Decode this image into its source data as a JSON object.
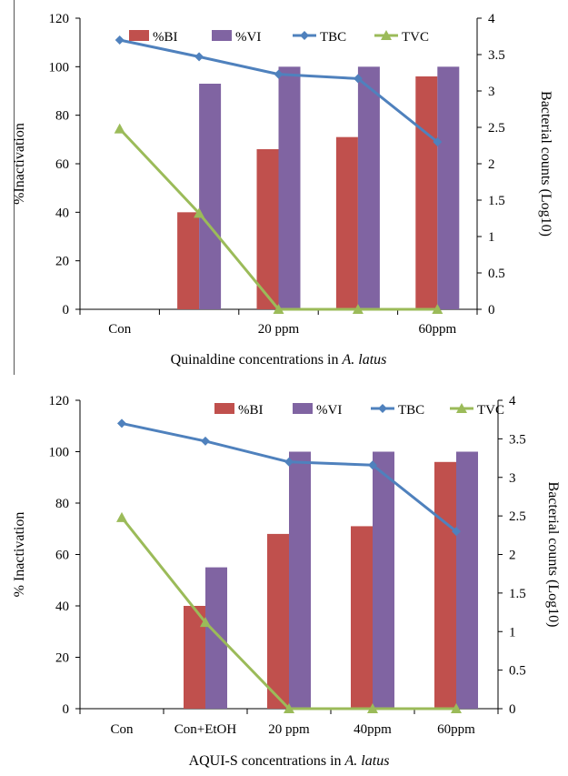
{
  "colors": {
    "bi": "#c0504d",
    "vi": "#8064a2",
    "tbc": "#4f81bd",
    "tvc": "#9bbb59",
    "axis": "#000000"
  },
  "chart_data": [
    {
      "type": "bar",
      "combo": "bar+line (secondary axis)",
      "categories": [
        "Con",
        "",
        "20 ppm",
        "",
        "60ppm"
      ],
      "xlabel_prefix": "Quinaldine concentrations in ",
      "xlabel_italic": "A. latus",
      "ylabel": "%Inactivation",
      "y2label": "Bacterial counts (Log10)",
      "ylim": [
        0,
        120
      ],
      "yticks": [
        "0",
        "20",
        "40",
        "60",
        "80",
        "100",
        "120"
      ],
      "y2lim": [
        0,
        4
      ],
      "y2ticks": [
        "0",
        "0.5",
        "1",
        "1.5",
        "2",
        "2.5",
        "3",
        "3.5",
        "4"
      ],
      "legend_position": "top",
      "series": [
        {
          "name": "%BI",
          "kind": "bar",
          "axis": "left",
          "values": [
            null,
            40,
            66,
            71,
            96
          ]
        },
        {
          "name": "%VI",
          "kind": "bar",
          "axis": "left",
          "values": [
            null,
            93,
            100,
            100,
            100
          ]
        },
        {
          "name": "TBC",
          "kind": "line",
          "marker": "diamond",
          "axis": "right",
          "values": [
            3.7,
            3.47,
            3.23,
            3.17,
            2.3
          ]
        },
        {
          "name": "TVC",
          "kind": "line",
          "marker": "triangle",
          "axis": "right",
          "values": [
            2.48,
            1.32,
            0,
            0,
            0
          ]
        }
      ]
    },
    {
      "type": "bar",
      "combo": "bar+line (secondary axis)",
      "categories": [
        "Con",
        "Con+EtOH",
        "20 ppm",
        "40ppm",
        "60ppm"
      ],
      "xlabel_prefix": "AQUI-S concentrations in ",
      "xlabel_italic": "A. latus",
      "ylabel": "% Inactivation",
      "y2label": "Bacterial counts (Log10)",
      "ylim": [
        0,
        120
      ],
      "yticks": [
        "0",
        "20",
        "40",
        "60",
        "80",
        "100",
        "120"
      ],
      "y2lim": [
        0,
        4
      ],
      "y2ticks": [
        "0",
        "0.5",
        "1",
        "1.5",
        "2",
        "2.5",
        "3",
        "3.5",
        "4"
      ],
      "legend_position": "top",
      "series": [
        {
          "name": "%BI",
          "kind": "bar",
          "axis": "left",
          "values": [
            null,
            40,
            68,
            71,
            96
          ]
        },
        {
          "name": "%VI",
          "kind": "bar",
          "axis": "left",
          "values": [
            null,
            55,
            100,
            100,
            100
          ]
        },
        {
          "name": "TBC",
          "kind": "line",
          "marker": "diamond",
          "axis": "right",
          "values": [
            3.7,
            3.47,
            3.2,
            3.16,
            2.3
          ]
        },
        {
          "name": "TVC",
          "kind": "line",
          "marker": "triangle",
          "axis": "right",
          "values": [
            2.48,
            1.12,
            0,
            0,
            0
          ]
        }
      ]
    }
  ]
}
